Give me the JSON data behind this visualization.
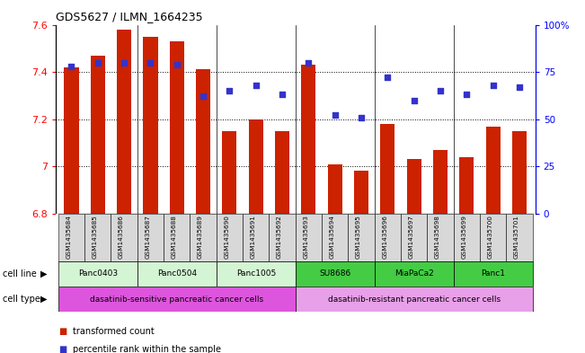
{
  "title": "GDS5627 / ILMN_1664235",
  "samples": [
    "GSM1435684",
    "GSM1435685",
    "GSM1435686",
    "GSM1435687",
    "GSM1435688",
    "GSM1435689",
    "GSM1435690",
    "GSM1435691",
    "GSM1435692",
    "GSM1435693",
    "GSM1435694",
    "GSM1435695",
    "GSM1435696",
    "GSM1435697",
    "GSM1435698",
    "GSM1435699",
    "GSM1435700",
    "GSM1435701"
  ],
  "transformed_count": [
    7.42,
    7.47,
    7.58,
    7.55,
    7.53,
    7.41,
    7.15,
    7.2,
    7.15,
    7.43,
    7.01,
    6.98,
    7.18,
    7.03,
    7.07,
    7.04,
    7.17,
    7.15
  ],
  "percentile_rank": [
    78,
    80,
    80,
    80,
    79,
    62,
    65,
    68,
    63,
    80,
    52,
    51,
    72,
    60,
    65,
    63,
    68,
    67
  ],
  "y_min": 6.8,
  "y_max": 7.6,
  "y_ticks": [
    6.8,
    7.0,
    7.2,
    7.4,
    7.6
  ],
  "right_y_ticks": [
    0,
    25,
    50,
    75,
    100
  ],
  "right_y_labels": [
    "0",
    "25",
    "50",
    "75",
    "100%"
  ],
  "bar_color": "#cc2200",
  "dot_color": "#3333cc",
  "bar_width": 0.55,
  "cell_lines": [
    {
      "name": "Panc0403",
      "start": 0,
      "end": 2,
      "color": "#d4f5d4"
    },
    {
      "name": "Panc0504",
      "start": 3,
      "end": 5,
      "color": "#d4f5d4"
    },
    {
      "name": "Panc1005",
      "start": 6,
      "end": 8,
      "color": "#d4f5d4"
    },
    {
      "name": "SU8686",
      "start": 9,
      "end": 11,
      "color": "#44cc44"
    },
    {
      "name": "MiaPaCa2",
      "start": 12,
      "end": 14,
      "color": "#44cc44"
    },
    {
      "name": "Panc1",
      "start": 15,
      "end": 17,
      "color": "#44cc44"
    }
  ],
  "cell_type_groups": [
    {
      "name": "dasatinib-sensitive pancreatic cancer cells",
      "start": 0,
      "end": 8,
      "color": "#dd55dd"
    },
    {
      "name": "dasatinib-resistant pancreatic cancer cells",
      "start": 9,
      "end": 17,
      "color": "#e8a0e8"
    }
  ],
  "group_boundaries": [
    2.5,
    5.5,
    8.5,
    11.5,
    14.5
  ],
  "legend_bar_color": "#cc2200",
  "legend_dot_color": "#3333cc",
  "legend_bar_label": "transformed count",
  "legend_dot_label": "percentile rank within the sample"
}
